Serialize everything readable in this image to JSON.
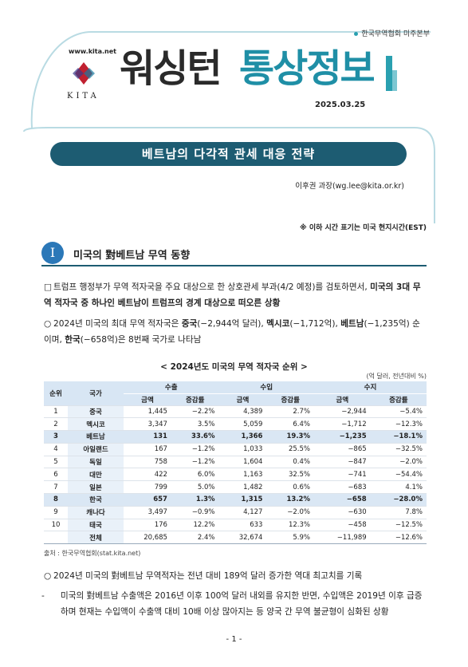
{
  "header": {
    "org": "한국무역협회 미주본부",
    "website": "www.kita.net",
    "logo_text": "KITA",
    "title_main": "워싱턴",
    "title_accent": "통상정보",
    "date": "2025.03.25"
  },
  "report": {
    "title": "베트남의 다각적 관세 대응 전략",
    "author": "이후권 과장(wg.lee@kita.or.kr)",
    "note": "※ 이하 시간 표기는 미국 현지시간(EST)"
  },
  "section": {
    "number": "I",
    "title": "미국의 對베트남 무역 동향"
  },
  "paragraphs_top": [
    {
      "marker": "□",
      "runs": [
        {
          "text": "트럼프 행정부가 무역 적자국을 주요 대상으로 한 상호관세 부과(4/2 예정)를 검토하면서, ",
          "bold": false
        },
        {
          "text": "미국의 3대 무역 적자국 중 하나인 베트남이 트럼프의 경계 대상으로 떠오른 상황",
          "bold": true
        }
      ]
    },
    {
      "marker": "○",
      "runs": [
        {
          "text": "2024년 미국의 최대 무역 적자국은 ",
          "bold": false
        },
        {
          "text": "중국",
          "bold": true
        },
        {
          "text": "(−2,944억 달러), ",
          "bold": false
        },
        {
          "text": "멕시코",
          "bold": true
        },
        {
          "text": "(−1,712억), ",
          "bold": false
        },
        {
          "text": "베트남",
          "bold": true
        },
        {
          "text": "(−1,235억) 순이며, ",
          "bold": false
        },
        {
          "text": "한국",
          "bold": true
        },
        {
          "text": "(−658억)은 8번째 국가로 나타남",
          "bold": false
        }
      ]
    }
  ],
  "table": {
    "caption": "< 2024년도 미국의 무역 적자국 순위 >",
    "unit": "(억 달러, 전년대비 %)",
    "head": {
      "rank": "순위",
      "country": "국가",
      "groups": [
        "수출",
        "수입",
        "수지"
      ],
      "sub": [
        "금액",
        "증감률"
      ]
    },
    "rows": [
      {
        "rank": "1",
        "country": "중국",
        "cells": [
          "1,445",
          "−2.2%",
          "4,389",
          "2.7%",
          "−2,944",
          "−5.4%"
        ],
        "highlight": false
      },
      {
        "rank": "2",
        "country": "멕시코",
        "cells": [
          "3,347",
          "3.5%",
          "5,059",
          "6.4%",
          "−1,712",
          "−12.3%"
        ],
        "highlight": false
      },
      {
        "rank": "3",
        "country": "베트남",
        "cells": [
          "131",
          "33.6%",
          "1,366",
          "19.3%",
          "−1,235",
          "−18.1%"
        ],
        "highlight": true
      },
      {
        "rank": "4",
        "country": "아일랜드",
        "cells": [
          "167",
          "−1.2%",
          "1,033",
          "25.5%",
          "−865",
          "−32.5%"
        ],
        "highlight": false
      },
      {
        "rank": "5",
        "country": "독일",
        "cells": [
          "758",
          "−1.2%",
          "1,604",
          "0.4%",
          "−847",
          "−2.0%"
        ],
        "highlight": false
      },
      {
        "rank": "6",
        "country": "대만",
        "cells": [
          "422",
          "6.0%",
          "1,163",
          "32.5%",
          "−741",
          "−54.4%"
        ],
        "highlight": false
      },
      {
        "rank": "7",
        "country": "일본",
        "cells": [
          "799",
          "5.0%",
          "1,482",
          "0.6%",
          "−683",
          "4.1%"
        ],
        "highlight": false
      },
      {
        "rank": "8",
        "country": "한국",
        "cells": [
          "657",
          "1.3%",
          "1,315",
          "13.2%",
          "−658",
          "−28.0%"
        ],
        "highlight": true
      },
      {
        "rank": "9",
        "country": "캐나다",
        "cells": [
          "3,497",
          "−0.9%",
          "4,127",
          "−2.0%",
          "−630",
          "7.8%"
        ],
        "highlight": false
      },
      {
        "rank": "10",
        "country": "태국",
        "cells": [
          "176",
          "12.2%",
          "633",
          "12.3%",
          "−458",
          "−12.5%"
        ],
        "highlight": false
      },
      {
        "rank": null,
        "country": "전체",
        "cells": [
          "20,685",
          "2.4%",
          "32,674",
          "5.9%",
          "−11,989",
          "−12.6%"
        ],
        "highlight": false
      }
    ],
    "source": "출처 : 한국무역협회(stat.kita.net)"
  },
  "paragraphs_bottom": [
    {
      "marker": "○",
      "runs": [
        {
          "text": "2024년 미국의 對베트남 무역적자는 전년 대비 189억 달러 증가한 역대 최고치를 기록",
          "bold": false
        }
      ]
    },
    {
      "marker": "-",
      "runs": [
        {
          "text": "미국의 對베트남 수출액은 2016년 이후 100억 달러 내외를 유지한 반면, 수입액은 2019년 이후 급증하며 현재는 수입액이 수출액 대비 10배 이상 많아지는 등 양국 간 무역 불균형이 심화된 상황",
          "bold": false
        }
      ]
    }
  ],
  "footer": {
    "page": "- 1 -"
  }
}
